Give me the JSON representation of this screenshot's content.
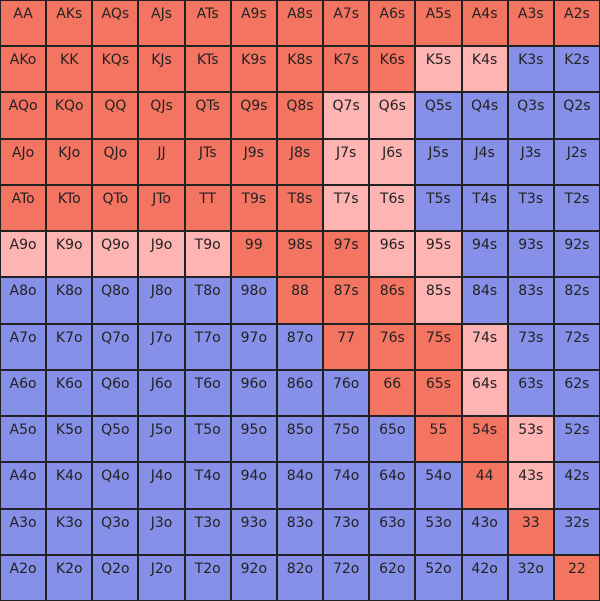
{
  "chart_data": {
    "type": "heatmap",
    "title": "",
    "palette": {
      "R": "#f47462",
      "P": "#ffb4b4",
      "B": "#8690e8"
    },
    "hands": [
      [
        "AA",
        "AKs",
        "AQs",
        "AJs",
        "ATs",
        "A9s",
        "A8s",
        "A7s",
        "A6s",
        "A5s",
        "A4s",
        "A3s",
        "A2s"
      ],
      [
        "AKo",
        "KK",
        "KQs",
        "KJs",
        "KTs",
        "K9s",
        "K8s",
        "K7s",
        "K6s",
        "K5s",
        "K4s",
        "K3s",
        "K2s"
      ],
      [
        "AQo",
        "KQo",
        "QQ",
        "QJs",
        "QTs",
        "Q9s",
        "Q8s",
        "Q7s",
        "Q6s",
        "Q5s",
        "Q4s",
        "Q3s",
        "Q2s"
      ],
      [
        "AJo",
        "KJo",
        "QJo",
        "JJ",
        "JTs",
        "J9s",
        "J8s",
        "J7s",
        "J6s",
        "J5s",
        "J4s",
        "J3s",
        "J2s"
      ],
      [
        "ATo",
        "KTo",
        "QTo",
        "JTo",
        "TT",
        "T9s",
        "T8s",
        "T7s",
        "T6s",
        "T5s",
        "T4s",
        "T3s",
        "T2s"
      ],
      [
        "A9o",
        "K9o",
        "Q9o",
        "J9o",
        "T9o",
        "99",
        "98s",
        "97s",
        "96s",
        "95s",
        "94s",
        "93s",
        "92s"
      ],
      [
        "A8o",
        "K8o",
        "Q8o",
        "J8o",
        "T8o",
        "98o",
        "88",
        "87s",
        "86s",
        "85s",
        "84s",
        "83s",
        "82s"
      ],
      [
        "A7o",
        "K7o",
        "Q7o",
        "J7o",
        "T7o",
        "97o",
        "87o",
        "77",
        "76s",
        "75s",
        "74s",
        "73s",
        "72s"
      ],
      [
        "A6o",
        "K6o",
        "Q6o",
        "J6o",
        "T6o",
        "96o",
        "86o",
        "76o",
        "66",
        "65s",
        "64s",
        "63s",
        "62s"
      ],
      [
        "A5o",
        "K5o",
        "Q5o",
        "J5o",
        "T5o",
        "95o",
        "85o",
        "75o",
        "65o",
        "55",
        "54s",
        "53s",
        "52s"
      ],
      [
        "A4o",
        "K4o",
        "Q4o",
        "J4o",
        "T4o",
        "94o",
        "84o",
        "74o",
        "64o",
        "54o",
        "44",
        "43s",
        "42s"
      ],
      [
        "A3o",
        "K3o",
        "Q3o",
        "J3o",
        "T3o",
        "93o",
        "83o",
        "73o",
        "63o",
        "53o",
        "43o",
        "33",
        "32s"
      ],
      [
        "A2o",
        "K2o",
        "Q2o",
        "J2o",
        "T2o",
        "92o",
        "82o",
        "72o",
        "62o",
        "52o",
        "42o",
        "32o",
        "22"
      ]
    ],
    "actions": [
      "RRRRRRRRRRRRR",
      "RRRRRRRRRPPBB",
      "RRRRRRRPPBBBB",
      "RRRRRRRPPBBBB",
      "RRRRRRRPPBBBB",
      "PPPPPRRRPPBBB",
      "BBBBBBRRRPBBB",
      "BBBBBBBRRRPBB",
      "BBBBBBBBRRPBB",
      "BBBBBBBBBRRPB",
      "BBBBBBBBBBRPB",
      "BBBBBBBBBBBRB",
      "BBBBBBBBBBBBR"
    ]
  }
}
